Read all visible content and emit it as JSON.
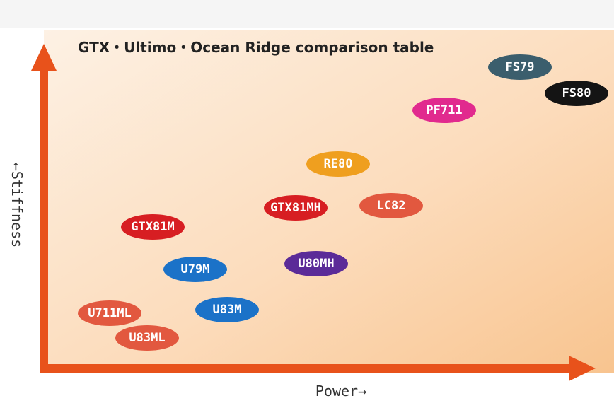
{
  "title": "GTX・Ultimo・Ocean Ridge comparison table",
  "y_axis_label": "←Stiffness",
  "x_axis_label": "Power→",
  "nodes": [
    {
      "label": "FS79",
      "color": "#3b5e6d"
    },
    {
      "label": "FS80",
      "color": "#141414"
    },
    {
      "label": "PF711",
      "color": "#e12a8e"
    },
    {
      "label": "RE80",
      "color": "#ef9f1f"
    },
    {
      "label": "GTX81MH",
      "color": "#d71e22"
    },
    {
      "label": "LC82",
      "color": "#e2583f"
    },
    {
      "label": "GTX81M",
      "color": "#d71e22"
    },
    {
      "label": "U79M",
      "color": "#1b72c8"
    },
    {
      "label": "U80MH",
      "color": "#5b2b98"
    },
    {
      "label": "U711ML",
      "color": "#e2583f"
    },
    {
      "label": "U83M",
      "color": "#1b72c8"
    },
    {
      "label": "U83ML",
      "color": "#e2583f"
    }
  ]
}
